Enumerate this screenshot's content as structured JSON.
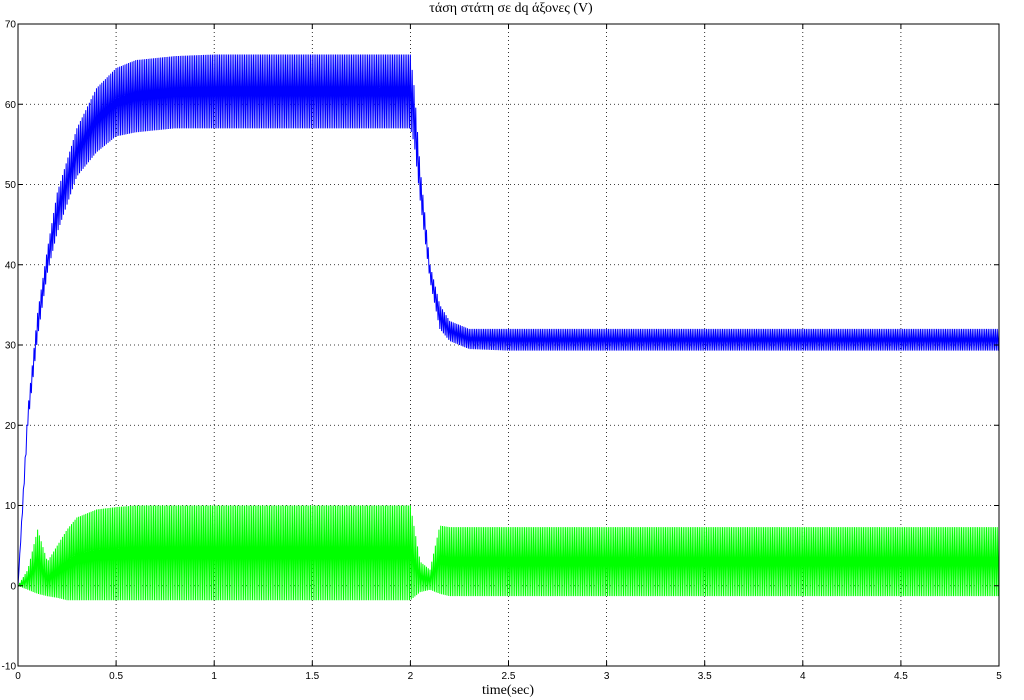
{
  "chart_data": {
    "type": "line",
    "title": "τάση  στάτη σε dq άξονες   (V)",
    "xlabel": "time(sec)",
    "ylabel": "",
    "xlim": [
      0,
      5
    ],
    "ylim": [
      -10,
      70
    ],
    "xticks": [
      0,
      0.5,
      1,
      1.5,
      2,
      2.5,
      3,
      3.5,
      4,
      4.5,
      5
    ],
    "xtick_labels": [
      "0",
      "0.5",
      "1",
      "1.5",
      "2",
      "2.5",
      "3",
      "3.5",
      "4",
      "4.5",
      "5"
    ],
    "yticks": [
      -10,
      0,
      10,
      20,
      30,
      40,
      50,
      60,
      70
    ],
    "ytick_labels": [
      "-10",
      "0",
      "10",
      "20",
      "30",
      "40",
      "50",
      "60",
      "70"
    ],
    "grid": true,
    "legend": "none",
    "series": [
      {
        "color": "#0000ff",
        "x": [
          0,
          0.05,
          0.1,
          0.15,
          0.2,
          0.3,
          0.4,
          0.5,
          0.6,
          0.8,
          1.0,
          1.5,
          2.0,
          2.02,
          2.05,
          2.1,
          2.15,
          2.2,
          2.3,
          2.5,
          3.0,
          4.0,
          5.0
        ],
        "y_max": [
          0,
          22,
          34,
          42,
          49,
          57,
          62,
          64.5,
          65.5,
          66,
          66.2,
          66.2,
          66.2,
          62,
          52,
          40,
          35,
          33,
          32,
          32,
          32,
          32,
          32
        ],
        "y_min": [
          0,
          20,
          31,
          39,
          44,
          51,
          54,
          56,
          56.5,
          57,
          57,
          57,
          57,
          55,
          48,
          38,
          32,
          30.5,
          29.5,
          29.3,
          29.3,
          29.3,
          29.3
        ]
      },
      {
        "color": "#00ff00",
        "x": [
          0,
          0.05,
          0.1,
          0.15,
          0.2,
          0.25,
          0.3,
          0.4,
          0.5,
          0.6,
          0.8,
          1.0,
          1.5,
          2.0,
          2.05,
          2.1,
          2.15,
          2.2,
          2.5,
          3.0,
          4.0,
          5.0
        ],
        "y_max": [
          0,
          2,
          7,
          3,
          5,
          7,
          8.5,
          9.5,
          9.8,
          10,
          10,
          10,
          10,
          10,
          3,
          2,
          7.5,
          7.3,
          7.3,
          7.3,
          7.3,
          7.3
        ],
        "y_min": [
          0,
          -0.5,
          -1,
          -1.3,
          -1.5,
          -1.8,
          -1.8,
          -1.8,
          -1.8,
          -1.8,
          -1.8,
          -1.8,
          -1.8,
          -1.8,
          -0.8,
          -0.5,
          -1,
          -1.3,
          -1.3,
          -1.3,
          -1.3,
          -1.3
        ]
      }
    ]
  }
}
